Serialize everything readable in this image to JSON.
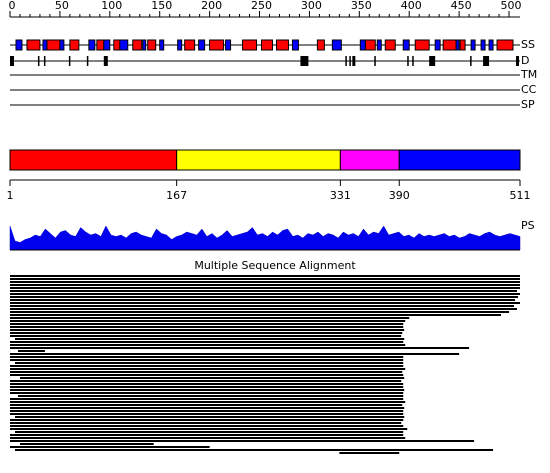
{
  "ruler": {
    "ticks": [
      0,
      50,
      100,
      150,
      200,
      250,
      300,
      350,
      400,
      450,
      500
    ]
  },
  "tracks": {
    "ss": {
      "label": "SS",
      "helices": [
        [
          17,
          30
        ],
        [
          37,
          50
        ],
        [
          60,
          69
        ],
        [
          87,
          94
        ],
        [
          104,
          117
        ],
        [
          123,
          132
        ],
        [
          138,
          146
        ],
        [
          175,
          185
        ],
        [
          200,
          214
        ],
        [
          233,
          247
        ],
        [
          252,
          263
        ],
        [
          267,
          279
        ],
        [
          308,
          315
        ],
        [
          356,
          366
        ],
        [
          376,
          386
        ],
        [
          406,
          420
        ],
        [
          434,
          447
        ],
        [
          451,
          456
        ],
        [
          488,
          504
        ]
      ],
      "strands": [
        [
          6,
          12
        ],
        [
          33,
          37
        ],
        [
          50,
          54
        ],
        [
          79,
          85
        ],
        [
          94,
          100
        ],
        [
          110,
          118
        ],
        [
          133,
          136
        ],
        [
          150,
          154
        ],
        [
          168,
          172
        ],
        [
          189,
          195
        ],
        [
          216,
          221
        ],
        [
          283,
          289
        ],
        [
          323,
          332
        ],
        [
          351,
          356
        ],
        [
          368,
          372
        ],
        [
          394,
          400
        ],
        [
          426,
          431
        ],
        [
          447,
          450
        ],
        [
          462,
          466
        ],
        [
          472,
          476
        ],
        [
          480,
          484
        ]
      ]
    },
    "disorder": {
      "label": "D",
      "regions": [
        [
          0,
          4
        ],
        [
          28,
          29
        ],
        [
          34,
          35
        ],
        [
          59,
          60
        ],
        [
          77,
          78
        ],
        [
          94,
          98
        ],
        [
          291,
          299
        ],
        [
          336,
          337
        ],
        [
          340,
          341
        ],
        [
          343,
          346
        ],
        [
          365,
          366
        ],
        [
          398,
          399
        ],
        [
          403,
          404
        ],
        [
          420,
          426
        ],
        [
          461,
          462
        ],
        [
          474,
          480
        ],
        [
          507,
          510
        ]
      ]
    },
    "tm": {
      "label": "TM"
    },
    "cc": {
      "label": "CC"
    },
    "sp": {
      "label": "SP"
    }
  },
  "domains": {
    "boundaries": [
      1,
      167,
      331,
      390,
      511
    ],
    "colors": [
      "#ff0000",
      "#ffff00",
      "#ff00ff",
      "#0000ff"
    ]
  },
  "ps": {
    "label": "PS",
    "values": [
      0.8,
      0.3,
      0.25,
      0.35,
      0.4,
      0.5,
      0.45,
      0.7,
      0.55,
      0.4,
      0.6,
      0.65,
      0.5,
      0.45,
      0.75,
      0.6,
      0.5,
      0.55,
      0.45,
      0.8,
      0.5,
      0.45,
      0.5,
      0.4,
      0.55,
      0.6,
      0.5,
      0.45,
      0.4,
      0.7,
      0.55,
      0.5,
      0.35,
      0.45,
      0.5,
      0.6,
      0.55,
      0.5,
      0.7,
      0.45,
      0.55,
      0.4,
      0.5,
      0.65,
      0.45,
      0.5,
      0.55,
      0.6,
      0.75,
      0.5,
      0.55,
      0.45,
      0.6,
      0.5,
      0.65,
      0.7,
      0.45,
      0.5,
      0.4,
      0.55,
      0.5,
      0.6,
      0.45,
      0.55,
      0.5,
      0.4,
      0.6,
      0.5,
      0.55,
      0.45,
      0.7,
      0.5,
      0.6,
      0.55,
      0.8,
      0.5,
      0.55,
      0.6,
      0.45,
      0.5,
      0.4,
      0.55,
      0.45,
      0.5,
      0.45,
      0.5,
      0.55,
      0.45,
      0.5,
      0.4,
      0.45,
      0.55,
      0.5,
      0.45,
      0.55,
      0.6,
      0.5,
      0.45,
      0.5,
      0.55,
      0.5,
      0.45
    ]
  },
  "alignment": {
    "title": "Multiple Sequence Alignment",
    "rows": [
      [
        0,
        511
      ],
      [
        0,
        511
      ],
      [
        0,
        511
      ],
      [
        0,
        511
      ],
      [
        0,
        511
      ],
      [
        0,
        508
      ],
      [
        0,
        511
      ],
      [
        0,
        509
      ],
      [
        0,
        506
      ],
      [
        0,
        511
      ],
      [
        0,
        505
      ],
      [
        0,
        508
      ],
      [
        0,
        500
      ],
      [
        0,
        492
      ],
      [
        0,
        400
      ],
      [
        0,
        396
      ],
      [
        0,
        394
      ],
      [
        0,
        394
      ],
      [
        0,
        395
      ],
      [
        0,
        393
      ],
      [
        0,
        392
      ],
      [
        5,
        395
      ],
      [
        0,
        394
      ],
      [
        0,
        396
      ],
      [
        0,
        460
      ],
      [
        8,
        35
      ],
      [
        0,
        450
      ],
      [
        0,
        394
      ],
      [
        0,
        394
      ],
      [
        5,
        394
      ],
      [
        0,
        394
      ],
      [
        0,
        396
      ],
      [
        0,
        393
      ],
      [
        0,
        394
      ],
      [
        10,
        395
      ],
      [
        0,
        392
      ],
      [
        0,
        394
      ],
      [
        0,
        394
      ],
      [
        0,
        395
      ],
      [
        0,
        394
      ],
      [
        8,
        394
      ],
      [
        0,
        394
      ],
      [
        0,
        396
      ],
      [
        0,
        393
      ],
      [
        0,
        395
      ],
      [
        0,
        394
      ],
      [
        0,
        394
      ],
      [
        5,
        395
      ],
      [
        0,
        394
      ],
      [
        0,
        392
      ],
      [
        0,
        394
      ],
      [
        0,
        398
      ],
      [
        5,
        394
      ],
      [
        0,
        394
      ],
      [
        0,
        396
      ],
      [
        0,
        465
      ],
      [
        10,
        144
      ],
      [
        0,
        200
      ],
      [
        5,
        484
      ],
      [
        330,
        390
      ]
    ]
  }
}
